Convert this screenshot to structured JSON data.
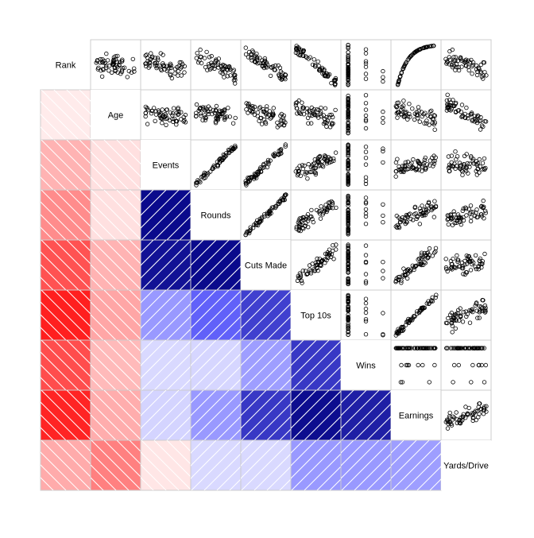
{
  "chart_data": {
    "type": "scatter-matrix-corrgram",
    "variables": [
      "Rank",
      "Age",
      "Events",
      "Rounds",
      "Cuts Made",
      "Top 10s",
      "Wins",
      "Earnings",
      "Yards/Drive"
    ],
    "lower_panels": "shade (sign/strength of correlation)",
    "upper_panels": "scatter points",
    "diagonal": "variable names",
    "correlations": [
      [
        1.0,
        -0.08,
        -0.3,
        -0.45,
        -0.68,
        -0.88,
        -0.7,
        -0.86,
        -0.33
      ],
      [
        -0.08,
        1.0,
        -0.12,
        -0.12,
        -0.3,
        -0.35,
        -0.27,
        -0.32,
        -0.5
      ],
      [
        -0.3,
        -0.12,
        1.0,
        0.96,
        0.93,
        0.4,
        0.15,
        0.17,
        -0.1
      ],
      [
        -0.45,
        -0.12,
        0.96,
        1.0,
        0.96,
        0.62,
        0.16,
        0.4,
        0.15
      ],
      [
        -0.68,
        -0.3,
        0.93,
        0.96,
        1.0,
        0.75,
        0.38,
        0.78,
        0.15
      ],
      [
        -0.88,
        -0.35,
        0.4,
        0.62,
        0.75,
        1.0,
        0.78,
        0.95,
        0.4
      ],
      [
        -0.7,
        -0.27,
        0.15,
        0.16,
        0.38,
        0.78,
        1.0,
        0.88,
        0.4
      ],
      [
        -0.86,
        -0.32,
        0.17,
        0.4,
        0.78,
        0.95,
        0.88,
        1.0,
        0.38
      ],
      [
        -0.33,
        -0.5,
        -0.1,
        0.15,
        0.15,
        0.4,
        0.4,
        0.38,
        1.0
      ]
    ],
    "colors": {
      "positive_strong": "#00007f",
      "negative_strong": "#ff0000",
      "neutral": "#ffffff",
      "panel_border": "#cccccc"
    }
  }
}
